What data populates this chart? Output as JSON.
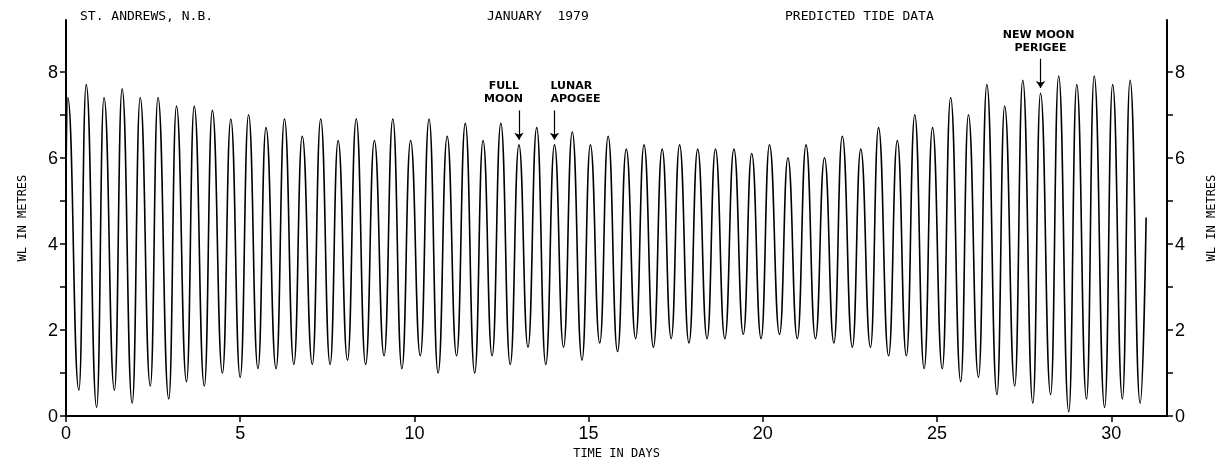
{
  "chart_data": {
    "type": "line",
    "title": "ST. ANDREWS, N.B.",
    "subtitle": "JANUARY  1979",
    "xlabel": "TIME IN DAYS",
    "ylabel": "WL IN METRES",
    "y2label": "WL IN METRES",
    "annotations": [
      "PREDICTED TIDE DATA",
      {
        "text": "FULL MOON",
        "x": 13.0,
        "y": 6.3
      },
      {
        "text": "LUNAR APOGEE",
        "x": 14.02,
        "y": 6.3
      },
      {
        "text": "NEW MOON PERIGEE",
        "x": 27.97,
        "y": 7.5
      }
    ],
    "x": [
      0,
      0.05,
      0.37,
      0.58,
      0.88,
      1.09,
      1.39,
      1.61,
      1.9,
      2.13,
      2.42,
      2.64,
      2.95,
      3.17,
      3.46,
      3.68,
      3.97,
      4.2,
      4.49,
      4.73,
      5.0,
      5.24,
      5.51,
      5.74,
      6.03,
      6.27,
      6.54,
      6.78,
      7.07,
      7.31,
      7.58,
      7.81,
      8.08,
      8.33,
      8.6,
      8.85,
      9.13,
      9.38,
      9.64,
      9.89,
      10.17,
      10.42,
      10.68,
      10.94,
      11.21,
      11.46,
      11.73,
      11.97,
      12.23,
      12.48,
      12.75,
      13.0,
      13.26,
      13.51,
      13.77,
      14.02,
      14.28,
      14.53,
      14.81,
      15.05,
      15.32,
      15.56,
      15.83,
      16.08,
      16.35,
      16.59,
      16.86,
      17.11,
      17.37,
      17.61,
      17.88,
      18.13,
      18.4,
      18.64,
      18.91,
      19.17,
      19.44,
      19.68,
      19.95,
      20.19,
      20.48,
      20.72,
      20.99,
      21.24,
      21.51,
      21.77,
      22.04,
      22.28,
      22.57,
      22.81,
      23.09,
      23.32,
      23.61,
      23.86,
      24.12,
      24.36,
      24.63,
      24.87,
      25.15,
      25.39,
      25.68,
      25.9,
      26.19,
      26.43,
      26.72,
      26.94,
      27.23,
      27.46,
      27.75,
      27.97,
      28.26,
      28.49,
      28.78,
      29.01,
      29.29,
      29.51,
      29.81,
      30.04,
      30.32,
      30.54,
      30.83,
      31.0
    ],
    "series": [
      {
        "color": "#000000",
        "values": [
          5.5,
          7.4,
          0.6,
          7.7,
          0.2,
          7.4,
          0.6,
          7.6,
          0.3,
          7.4,
          0.7,
          7.4,
          0.4,
          7.2,
          0.8,
          7.2,
          0.7,
          7.1,
          1.0,
          6.9,
          0.9,
          7.0,
          1.1,
          6.7,
          1.1,
          6.9,
          1.2,
          6.5,
          1.2,
          6.9,
          1.2,
          6.4,
          1.3,
          6.9,
          1.2,
          6.4,
          1.4,
          6.9,
          1.1,
          6.4,
          1.4,
          6.9,
          1.0,
          6.5,
          1.4,
          6.8,
          1.0,
          6.4,
          1.4,
          6.8,
          1.2,
          6.3,
          1.6,
          6.7,
          1.2,
          6.3,
          1.6,
          6.6,
          1.3,
          6.3,
          1.7,
          6.5,
          1.5,
          6.2,
          1.8,
          6.3,
          1.6,
          6.2,
          1.8,
          6.3,
          1.7,
          6.2,
          1.8,
          6.2,
          1.8,
          6.2,
          1.9,
          6.1,
          1.8,
          6.3,
          1.9,
          6.0,
          1.8,
          6.3,
          1.8,
          6.0,
          1.7,
          6.5,
          1.6,
          6.2,
          1.6,
          6.7,
          1.4,
          6.4,
          1.4,
          7.0,
          1.1,
          6.7,
          1.1,
          7.4,
          0.8,
          7.0,
          0.9,
          7.7,
          0.5,
          7.2,
          0.7,
          7.8,
          0.3,
          7.5,
          0.5,
          7.9,
          0.1,
          7.7,
          0.4,
          7.9,
          0.2,
          7.7,
          0.4,
          7.8,
          0.3,
          4.6
        ]
      }
    ],
    "xlim": [
      0,
      31.6
    ],
    "xticks": [
      0,
      5,
      10,
      15,
      20,
      25,
      30
    ],
    "ylim": [
      0,
      9.2
    ],
    "yticks": [
      0,
      {
        "value": 1,
        "label": null
      },
      2,
      {
        "value": 3,
        "label": null
      },
      4,
      {
        "value": 5,
        "label": null
      },
      6,
      {
        "value": 7,
        "label": null
      },
      8
    ],
    "y2lim": [
      0,
      9.2
    ],
    "y2ticks": [
      0,
      {
        "value": 1,
        "label": null
      },
      2,
      {
        "value": 3,
        "label": null
      },
      4,
      {
        "value": 5,
        "label": null
      },
      6,
      {
        "value": 7,
        "label": null
      },
      8
    ],
    "grid": false,
    "marker": "none",
    "line_style": "solid"
  }
}
